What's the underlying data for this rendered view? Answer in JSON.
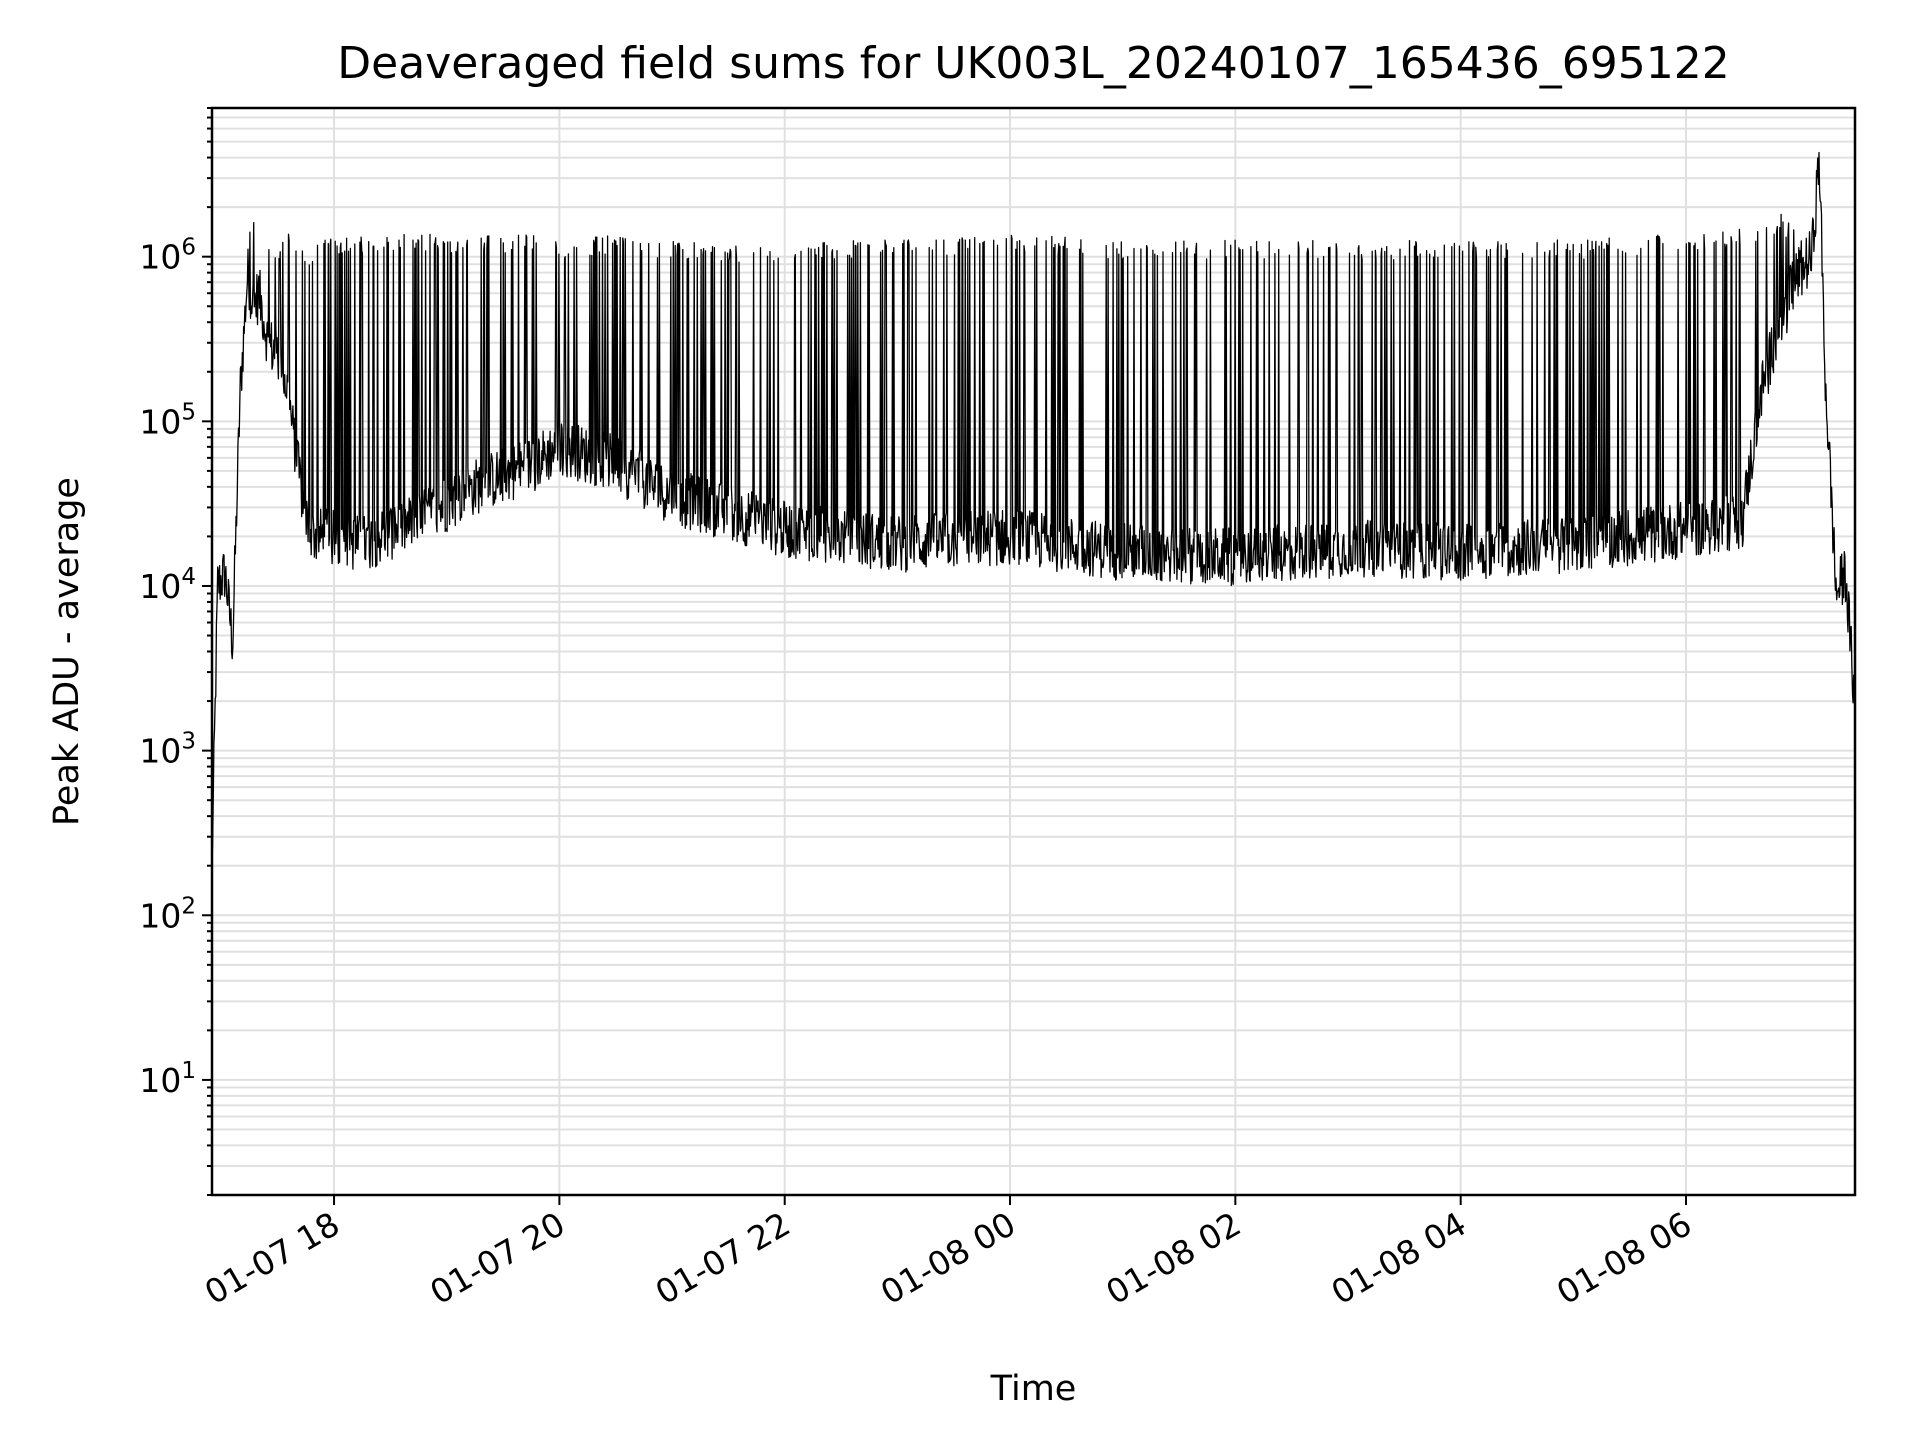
{
  "chart_data": {
    "type": "line",
    "title": "Deaveraged field sums for UK003L_20240107_165436_695122",
    "xlabel": "Time",
    "ylabel": "Peak ADU - average",
    "x_axis": {
      "kind": "datetime",
      "range": [
        "2024-01-07 16:55",
        "2024-01-08 07:30"
      ],
      "ticks": [
        {
          "value": "2024-01-07 18:00",
          "label": "01-07 18"
        },
        {
          "value": "2024-01-07 20:00",
          "label": "01-07 20"
        },
        {
          "value": "2024-01-07 22:00",
          "label": "01-07 22"
        },
        {
          "value": "2024-01-08 00:00",
          "label": "01-08 00"
        },
        {
          "value": "2024-01-08 02:00",
          "label": "01-08 02"
        },
        {
          "value": "2024-01-08 04:00",
          "label": "01-08 04"
        },
        {
          "value": "2024-01-08 06:00",
          "label": "01-08 06"
        }
      ]
    },
    "y_axis": {
      "scale": "log",
      "range": [
        2,
        8000000
      ],
      "ticks": [
        {
          "value": 10,
          "base": "10",
          "exp": "1"
        },
        {
          "value": 100,
          "base": "10",
          "exp": "2"
        },
        {
          "value": 1000,
          "base": "10",
          "exp": "3"
        },
        {
          "value": 10000,
          "base": "10",
          "exp": "4"
        },
        {
          "value": 100000,
          "base": "10",
          "exp": "5"
        },
        {
          "value": 1000000,
          "base": "10",
          "exp": "6"
        }
      ]
    },
    "grid": true,
    "line_color": "#000000",
    "grid_color": "#e0e0e0",
    "series": [
      {
        "x": [
          "2024-01-07 16:55",
          "2024-01-07 16:58",
          "2024-01-07 17:02",
          "2024-01-07 17:06",
          "2024-01-07 17:10",
          "2024-01-07 17:14",
          "2024-01-07 17:17",
          "2024-01-07 17:20",
          "2024-01-07 17:25",
          "2024-01-07 17:30",
          "2024-01-07 17:35",
          "2024-01-07 17:40",
          "2024-01-07 17:45",
          "2024-01-07 17:50",
          "2024-01-07 17:55",
          "2024-01-07 18:15",
          "2024-01-07 18:45",
          "2024-01-07 19:15",
          "2024-01-07 19:45",
          "2024-01-07 20:00",
          "2024-01-07 20:30",
          "2024-01-07 21:00",
          "2024-01-07 21:30",
          "2024-01-07 22:00",
          "2024-01-07 23:00",
          "2024-01-08 00:00",
          "2024-01-08 01:00",
          "2024-01-08 02:00",
          "2024-01-08 03:00",
          "2024-01-08 04:00",
          "2024-01-08 05:00",
          "2024-01-08 06:00",
          "2024-01-08 06:30",
          "2024-01-08 06:40",
          "2024-01-08 06:50",
          "2024-01-08 07:00",
          "2024-01-08 07:07",
          "2024-01-08 07:11",
          "2024-01-08 07:14",
          "2024-01-08 07:20",
          "2024-01-08 07:25",
          "2024-01-08 07:30"
        ],
        "baseline": [
          200,
          10000,
          12000,
          4500,
          150000,
          800000,
          500000,
          600000,
          300000,
          250000,
          160000,
          60000,
          25000,
          20000,
          20000,
          18000,
          25000,
          40000,
          55000,
          70000,
          55000,
          35000,
          28000,
          22000,
          18000,
          20000,
          16000,
          15000,
          17000,
          16000,
          18000,
          22000,
          25000,
          150000,
          400000,
          800000,
          1000000,
          4000000,
          200000,
          9000,
          12000,
          1800
        ],
        "peak": [
          200,
          10000,
          12000,
          4500,
          200000,
          1200000,
          1600000,
          1400000,
          1200000,
          900000,
          1300000,
          1100000,
          1000000,
          1000000,
          1100000,
          1200000,
          1200000,
          1200000,
          1200000,
          1100000,
          1200000,
          1100000,
          1000000,
          1100000,
          1100000,
          1200000,
          1100000,
          1100000,
          1100000,
          1100000,
          1100000,
          1200000,
          1300000,
          1400000,
          1600000,
          1300000,
          1500000,
          4000000,
          200000,
          9000,
          12000,
          1800
        ]
      }
    ]
  }
}
